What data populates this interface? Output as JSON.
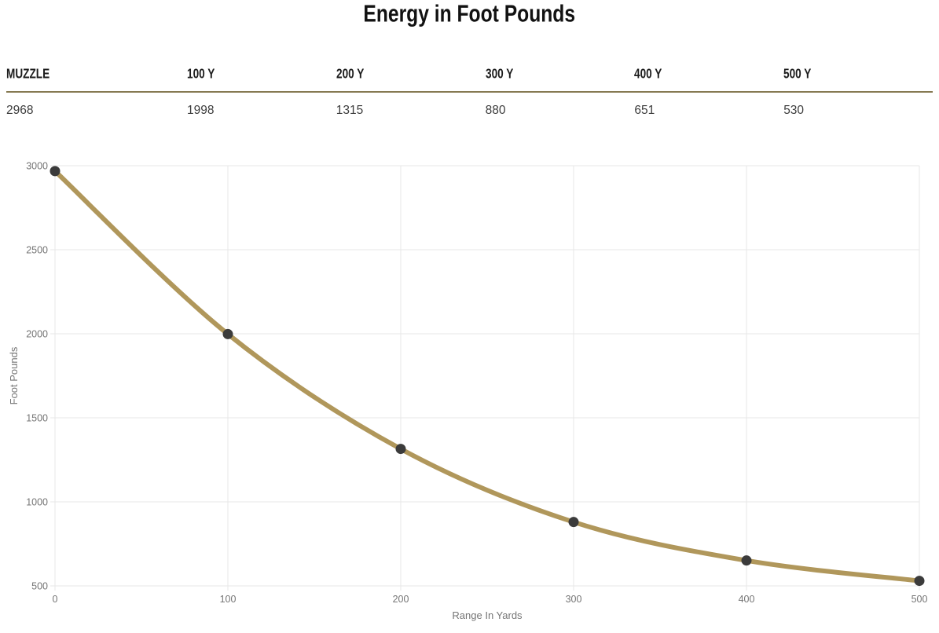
{
  "title": "Energy in Foot Pounds",
  "table": {
    "columns": [
      {
        "header": "MUZZLE",
        "value": "2968"
      },
      {
        "header": "100 Y",
        "value": "1998"
      },
      {
        "header": "200 Y",
        "value": "1315"
      },
      {
        "header": "300 Y",
        "value": "880"
      },
      {
        "header": "400 Y",
        "value": "651"
      },
      {
        "header": "500 Y",
        "value": "530"
      }
    ]
  },
  "chart_data": {
    "type": "line",
    "title": "Energy in Foot Pounds",
    "x": [
      0,
      100,
      200,
      300,
      400,
      500
    ],
    "values": [
      2968,
      1998,
      1315,
      880,
      651,
      530
    ],
    "xlabel": "Range In Yards",
    "ylabel": "Foot Pounds",
    "xlim": [
      0,
      500
    ],
    "ylim": [
      500,
      3000
    ],
    "x_ticks": [
      0,
      100,
      200,
      300,
      400,
      500
    ],
    "y_ticks": [
      500,
      1000,
      1500,
      2000,
      2500,
      3000
    ],
    "grid": true,
    "legend": false,
    "line_color": "#b0975b",
    "marker_color": "#3b3b3b",
    "grid_color": "#e7e7e7",
    "tick_label_color": "#757575"
  },
  "colors": {
    "accent_gold": "#b0975b",
    "table_divider": "#867a52",
    "title_text": "#121212",
    "value_text": "#3c3c3c"
  }
}
